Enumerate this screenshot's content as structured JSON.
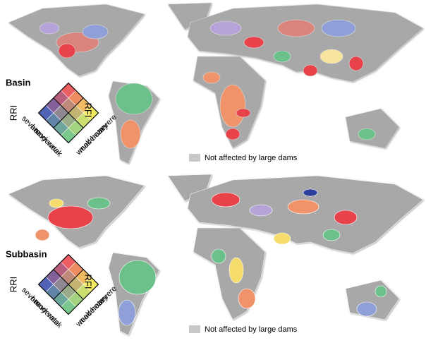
{
  "panels": [
    {
      "title": "Basin",
      "legend": {
        "left_axis": "RRI",
        "right_axis": "RFI",
        "left_levels": [
          "severe",
          "heavy",
          "moderate",
          "weak"
        ],
        "right_levels": [
          "severe",
          "heavy",
          "moderate",
          "weak"
        ],
        "note": "Not affected by large dams"
      }
    },
    {
      "title": "Subbasin",
      "legend": {
        "left_axis": "RRI",
        "right_axis": "RFI",
        "left_levels": [
          "severe",
          "heavy",
          "moderate",
          "weak"
        ],
        "right_levels": [
          "severe",
          "heavy",
          "moderate",
          "weak"
        ],
        "note": "Not affected by large dams"
      }
    }
  ]
}
